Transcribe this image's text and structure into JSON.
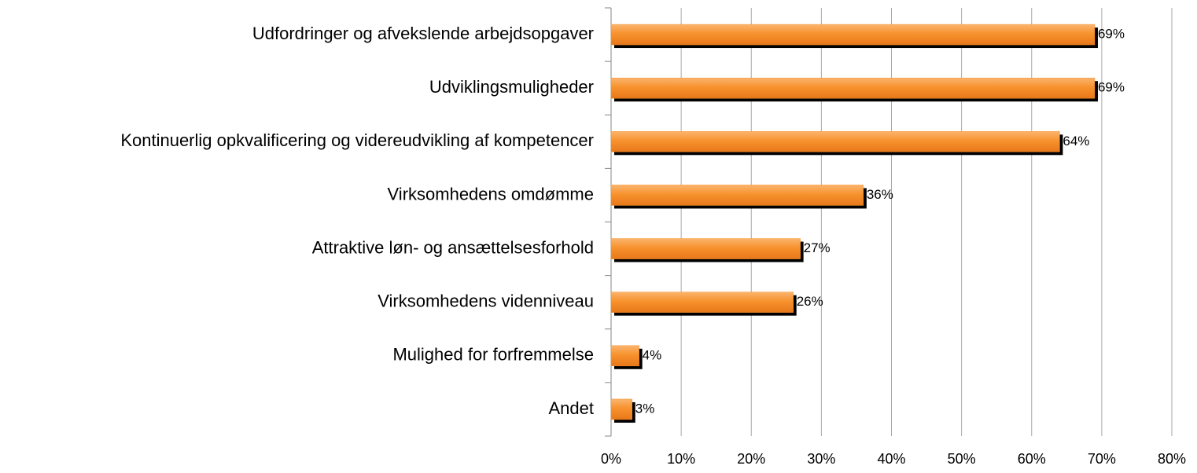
{
  "chart_data": {
    "type": "bar",
    "orientation": "horizontal",
    "categories": [
      "Udfordringer og afvekslende arbejdsopgaver",
      "Udviklingsmuligheder",
      "Kontinuerlig opkvalificering og videreudvikling af kompetencer",
      "Virksomhedens omdømme",
      "Attraktive løn- og ansættelsesforhold",
      "Virksomhedens videnniveau",
      "Mulighed for forfremmelse",
      "Andet"
    ],
    "values": [
      69,
      69,
      64,
      36,
      27,
      26,
      4,
      3
    ],
    "value_labels": [
      "69%",
      "69%",
      "64%",
      "36%",
      "27%",
      "26%",
      "4%",
      "3%"
    ],
    "color": "#f7922e",
    "xlim": [
      0,
      80
    ],
    "xticks": [
      {
        "value": 0,
        "label": "0%"
      },
      {
        "value": 10,
        "label": "10%"
      },
      {
        "value": 20,
        "label": "20%"
      },
      {
        "value": 30,
        "label": "30%"
      },
      {
        "value": 40,
        "label": "40%"
      },
      {
        "value": 50,
        "label": "50%"
      },
      {
        "value": 60,
        "label": "60%"
      },
      {
        "value": 70,
        "label": "70%"
      },
      {
        "value": 80,
        "label": "80%"
      }
    ],
    "grid": true
  }
}
